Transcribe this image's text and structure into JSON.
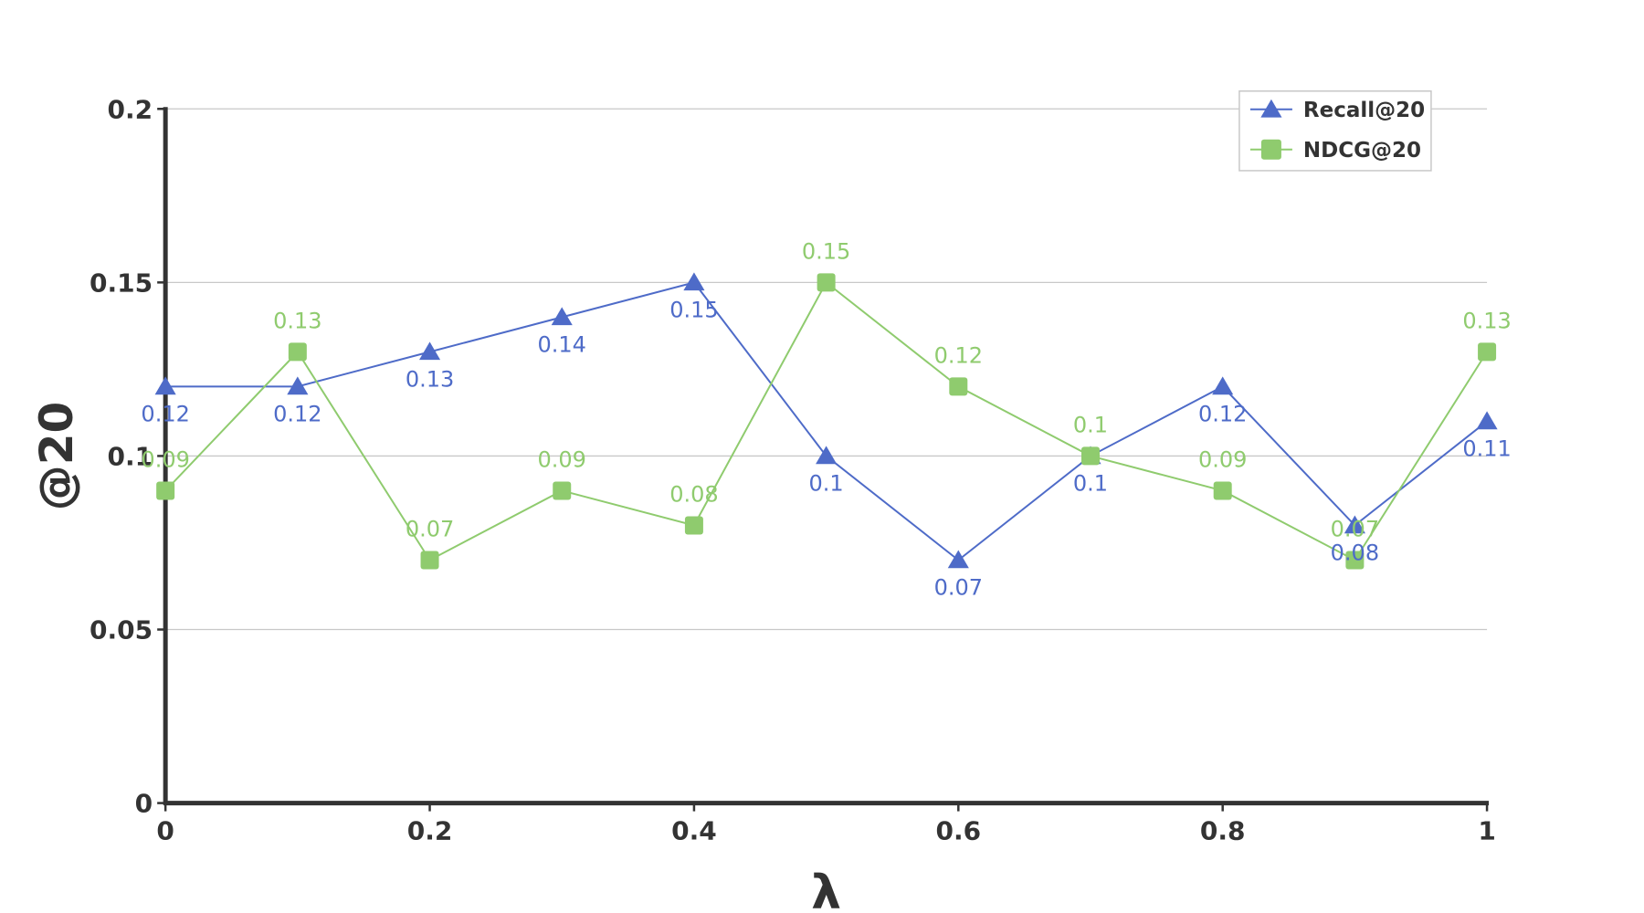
{
  "chart_data": {
    "type": "line",
    "title": "",
    "xlabel": "λ",
    "ylabel": "@20",
    "x": [
      0,
      0.1,
      0.2,
      0.3,
      0.4,
      0.5,
      0.6,
      0.7,
      0.8,
      0.9,
      1
    ],
    "xticks": [
      "0",
      "0.2",
      "0.4",
      "0.6",
      "0.8",
      "1"
    ],
    "xtick_values": [
      0,
      0.2,
      0.4,
      0.6,
      0.8,
      1
    ],
    "yticks": [
      "0",
      "0.05",
      "0.1",
      "0.15",
      "0.2"
    ],
    "ytick_values": [
      0,
      0.05,
      0.1,
      0.15,
      0.2
    ],
    "xlim": [
      0,
      1
    ],
    "ylim": [
      0,
      0.2
    ],
    "grid": "horizontal",
    "legend_position": "top-right",
    "series": [
      {
        "name": "Recall@20",
        "color": "#4E6BC8",
        "marker": "triangle",
        "label_position": "below",
        "values": [
          0.12,
          0.12,
          0.13,
          0.14,
          0.15,
          0.1,
          0.07,
          0.1,
          0.12,
          0.08,
          0.11
        ],
        "labels": [
          "0.12",
          "0.12",
          "0.13",
          "0.14",
          "0.15",
          "0.1",
          "0.07",
          "0.1",
          "0.12",
          "0.08",
          "0.11"
        ]
      },
      {
        "name": "NDCG@20",
        "color": "#8FCB6E",
        "marker": "square",
        "label_position": "above",
        "values": [
          0.09,
          0.13,
          0.07,
          0.09,
          0.08,
          0.15,
          0.12,
          0.1,
          0.09,
          0.07,
          0.13
        ],
        "labels": [
          "0.09",
          "0.13",
          "0.07",
          "0.09",
          "0.08",
          "0.15",
          "0.12",
          "0.1",
          "0.09",
          "0.07",
          "0.13"
        ]
      }
    ]
  }
}
